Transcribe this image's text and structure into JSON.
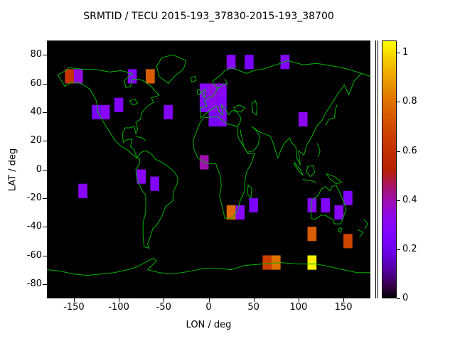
{
  "colors": {
    "background": "#ffffff",
    "plot_background": "#000000",
    "coastline": "#00b400",
    "text": "#000000"
  },
  "chart_data": {
    "type": "heatmap",
    "title": "SRMTID / TECU 2015-193_37830-2015-193_38700",
    "xlabel": "LON / deg",
    "ylabel": "LAT / deg",
    "xlim": [
      -180,
      180
    ],
    "ylim": [
      -90,
      90
    ],
    "xticks": [
      -150,
      -100,
      -50,
      0,
      50,
      100,
      150
    ],
    "yticks": [
      -80,
      -60,
      -40,
      -20,
      0,
      20,
      40,
      60,
      80
    ],
    "colorbar_ticks": [
      0,
      0.2,
      0.4,
      0.6,
      0.8,
      1
    ],
    "colorbar_range": [
      0,
      1.05
    ],
    "grid": false,
    "legend": "vertical colorbar at right",
    "basemap": "world coastlines in green over black ocean",
    "palette": "gnuplot default black-purple-red-orange-yellow",
    "cell_size_deg": {
      "lon": 10,
      "lat": 10
    },
    "cells": [
      {
        "lon": -160,
        "lat": 60,
        "value": 0.62
      },
      {
        "lon": -150,
        "lat": 60,
        "value": 0.35
      },
      {
        "lon": -90,
        "lat": 60,
        "value": 0.28
      },
      {
        "lon": -70,
        "lat": 60,
        "value": 0.75
      },
      {
        "lon": 20,
        "lat": 70,
        "value": 0.3
      },
      {
        "lon": 40,
        "lat": 70,
        "value": 0.24
      },
      {
        "lon": 80,
        "lat": 70,
        "value": 0.28
      },
      {
        "lon": -130,
        "lat": 35,
        "value": 0.24
      },
      {
        "lon": -120,
        "lat": 35,
        "value": 0.3
      },
      {
        "lon": -105,
        "lat": 40,
        "value": 0.27
      },
      {
        "lon": -50,
        "lat": 35,
        "value": 0.28
      },
      {
        "lon": -10,
        "lat": 50,
        "value": 0.3
      },
      {
        "lon": 0,
        "lat": 50,
        "value": 0.34
      },
      {
        "lon": 10,
        "lat": 50,
        "value": 0.3
      },
      {
        "lon": -10,
        "lat": 40,
        "value": 0.26
      },
      {
        "lon": 0,
        "lat": 40,
        "value": 0.32
      },
      {
        "lon": 10,
        "lat": 40,
        "value": 0.28
      },
      {
        "lon": 0,
        "lat": 30,
        "value": 0.24
      },
      {
        "lon": 10,
        "lat": 30,
        "value": 0.27
      },
      {
        "lon": 100,
        "lat": 30,
        "value": 0.32
      },
      {
        "lon": -10,
        "lat": 0,
        "value": 0.4
      },
      {
        "lon": -80,
        "lat": -10,
        "value": 0.3
      },
      {
        "lon": -65,
        "lat": -15,
        "value": 0.27
      },
      {
        "lon": -145,
        "lat": -20,
        "value": 0.3
      },
      {
        "lon": 20,
        "lat": -35,
        "value": 0.78
      },
      {
        "lon": 30,
        "lat": -35,
        "value": 0.3
      },
      {
        "lon": 45,
        "lat": -30,
        "value": 0.24
      },
      {
        "lon": 110,
        "lat": -30,
        "value": 0.3
      },
      {
        "lon": 125,
        "lat": -30,
        "value": 0.27
      },
      {
        "lon": 140,
        "lat": -35,
        "value": 0.3
      },
      {
        "lon": 150,
        "lat": -25,
        "value": 0.27
      },
      {
        "lon": 110,
        "lat": -50,
        "value": 0.75
      },
      {
        "lon": 150,
        "lat": -55,
        "value": 0.68
      },
      {
        "lon": 60,
        "lat": -70,
        "value": 0.66
      },
      {
        "lon": 70,
        "lat": -70,
        "value": 0.8
      },
      {
        "lon": 110,
        "lat": -70,
        "value": 1.03
      }
    ]
  }
}
